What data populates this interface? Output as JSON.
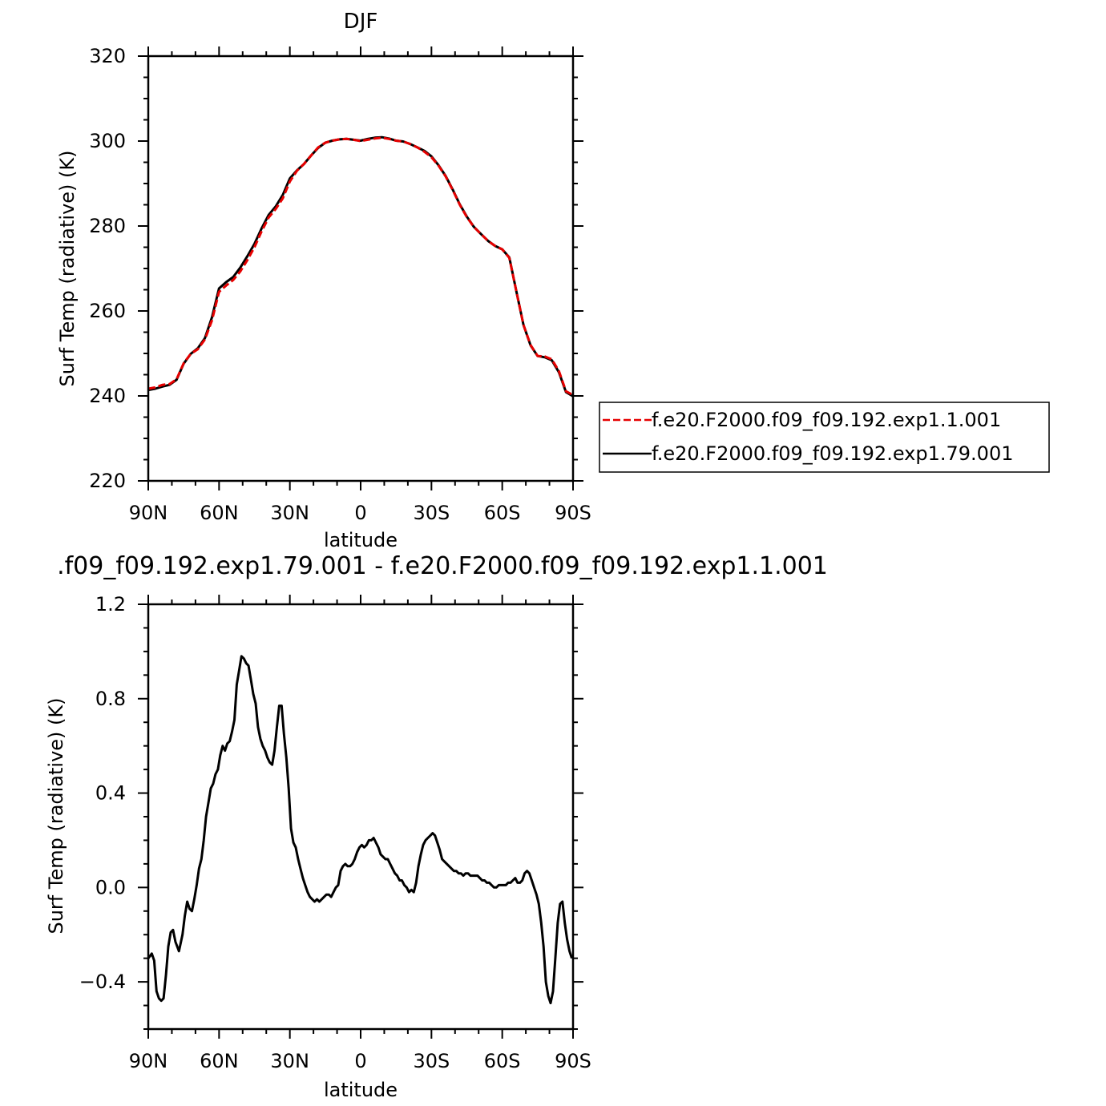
{
  "chart_data": [
    {
      "type": "line",
      "title": "DJF",
      "xlabel": "latitude",
      "ylabel": "Surf Temp (radiative) (K)",
      "xlim": [
        -90,
        90
      ],
      "ylim": [
        220,
        320
      ],
      "x_tick_values": [
        -90,
        -60,
        -30,
        0,
        30,
        60,
        90
      ],
      "x_tick_labels": [
        "90N",
        "60N",
        "30N",
        "0",
        "30S",
        "60S",
        "90S"
      ],
      "y_tick_values": [
        220,
        240,
        260,
        280,
        300,
        320
      ],
      "y_tick_labels": [
        "220",
        "240",
        "260",
        "280",
        "300",
        "320"
      ],
      "legend_position": "right",
      "series": [
        {
          "name": "f.e20.F2000.f09_f09.192.exp1.1.001",
          "color": "#e60000",
          "dash": "dashed",
          "x": [
            -90,
            -87,
            -84,
            -81,
            -78,
            -75,
            -72,
            -69,
            -66,
            -63,
            -60,
            -57,
            -54,
            -51,
            -48,
            -45,
            -42,
            -39,
            -36,
            -33,
            -30,
            -27,
            -24,
            -21,
            -18,
            -15,
            -12,
            -9,
            -6,
            -3,
            0,
            3,
            6,
            9,
            12,
            15,
            18,
            21,
            24,
            27,
            30,
            33,
            36,
            39,
            42,
            45,
            48,
            51,
            54,
            57,
            60,
            63,
            66,
            69,
            72,
            75,
            78,
            81,
            84,
            87,
            90
          ],
          "values": [
            241.7,
            242.0,
            242.6,
            242.8,
            243.9,
            247.7,
            249.9,
            251.0,
            253.3,
            257.8,
            264.5,
            266.0,
            267.3,
            269.3,
            272.0,
            275.0,
            278.7,
            282.0,
            284.0,
            286.5,
            290.5,
            293.0,
            294.6,
            296.6,
            298.5,
            299.6,
            300.1,
            300.4,
            300.5,
            300.3,
            300.0,
            300.3,
            300.6,
            300.8,
            300.5,
            300.1,
            299.9,
            299.3,
            298.5,
            297.5,
            296.2,
            294.2,
            291.7,
            288.5,
            285.0,
            282.1,
            279.8,
            278.1,
            276.5,
            275.3,
            274.5,
            272.5,
            264.6,
            256.7,
            252.0,
            249.4,
            249.3,
            248.6,
            245.9,
            241.1,
            240.2
          ]
        },
        {
          "name": "f.e20.F2000.f09_f09.192.exp1.79.001",
          "color": "#000000",
          "dash": "solid",
          "x": [
            -90,
            -87,
            -84,
            -81,
            -78,
            -75,
            -72,
            -69,
            -66,
            -63,
            -60,
            -57,
            -54,
            -51,
            -48,
            -45,
            -42,
            -39,
            -36,
            -33,
            -30,
            -27,
            -24,
            -21,
            -18,
            -15,
            -12,
            -9,
            -6,
            -3,
            0,
            3,
            6,
            9,
            12,
            15,
            18,
            21,
            24,
            27,
            30,
            33,
            36,
            39,
            42,
            45,
            48,
            51,
            54,
            57,
            60,
            63,
            66,
            69,
            72,
            75,
            78,
            81,
            84,
            87,
            90
          ],
          "values": [
            241.4,
            241.7,
            242.2,
            242.6,
            243.8,
            247.6,
            249.9,
            251.2,
            253.6,
            258.5,
            265.3,
            266.8,
            268.0,
            270.2,
            272.9,
            275.8,
            279.4,
            282.6,
            284.6,
            287.3,
            291.2,
            293.1,
            294.6,
            296.6,
            298.4,
            299.6,
            300.1,
            300.4,
            300.5,
            300.3,
            300.1,
            300.5,
            300.8,
            300.9,
            300.6,
            300.1,
            299.9,
            299.3,
            298.5,
            297.7,
            296.4,
            294.3,
            291.8,
            288.6,
            285.1,
            282.2,
            279.8,
            278.1,
            276.5,
            275.3,
            274.5,
            272.6,
            264.6,
            256.7,
            251.9,
            249.4,
            249.1,
            248.4,
            245.6,
            240.9,
            239.9
          ]
        }
      ]
    },
    {
      "type": "line",
      "title": ".f09_f09.192.exp1.79.001 - f.e20.F2000.f09_f09.192.exp1.1.001",
      "xlabel": "latitude",
      "ylabel": "Surf Temp (radiative) (K)",
      "xlim": [
        -90,
        90
      ],
      "ylim": [
        -0.6,
        1.2
      ],
      "x_tick_values": [
        -90,
        -60,
        -30,
        0,
        30,
        60,
        90
      ],
      "x_tick_labels": [
        "90N",
        "60N",
        "30N",
        "0",
        "30S",
        "60S",
        "90S"
      ],
      "y_tick_values": [
        -0.4,
        0.0,
        0.4,
        0.8,
        1.2
      ],
      "y_tick_labels": [
        "−0.4",
        "0.0",
        "0.4",
        "0.8",
        "1.2"
      ],
      "series": [
        {
          "color": "#000000",
          "x": [
            -90,
            -88.5,
            -87.5,
            -86.5,
            -85.5,
            -84.5,
            -83.5,
            -82.5,
            -81.5,
            -80.5,
            -79.5,
            -78.5,
            -77,
            -75.5,
            -74.5,
            -73.5,
            -72.5,
            -71.5,
            -70.5,
            -69.5,
            -68.5,
            -67.5,
            -66.5,
            -65.5,
            -64.5,
            -63.5,
            -62.5,
            -61.5,
            -60.5,
            -59.5,
            -58.5,
            -57.5,
            -56.5,
            -55.5,
            -54.5,
            -53.5,
            -52.5,
            -51.5,
            -50.5,
            -49.5,
            -48.5,
            -47.5,
            -46.5,
            -45.5,
            -44.5,
            -43.5,
            -42.5,
            -41.5,
            -40.5,
            -39.5,
            -38.5,
            -37.5,
            -36.5,
            -35.5,
            -34.5,
            -33.5,
            -32.5,
            -31.5,
            -30.5,
            -29.5,
            -28.5,
            -27.5,
            -26.5,
            -25.5,
            -24.5,
            -23.5,
            -22.5,
            -21.5,
            -20.5,
            -19.5,
            -18.5,
            -17.5,
            -16.5,
            -15.5,
            -14.5,
            -13.5,
            -12.5,
            -11.5,
            -10.5,
            -9.5,
            -8.5,
            -7.5,
            -6.5,
            -5.5,
            -4.5,
            -3.5,
            -2.5,
            -1.5,
            -0.5,
            0.5,
            1.5,
            2.5,
            3.5,
            4.5,
            5.5,
            6.5,
            7.5,
            8.5,
            9.5,
            10.5,
            11.5,
            12.5,
            13.5,
            14.5,
            15.5,
            16.5,
            17.5,
            18.5,
            19.5,
            20.5,
            21.5,
            22.5,
            23.5,
            24.5,
            25.5,
            26.5,
            27.5,
            28.5,
            29.5,
            30.5,
            31.5,
            32.5,
            33.5,
            34.5,
            35.5,
            36.5,
            37.5,
            38.5,
            39.5,
            40.5,
            41.5,
            42.5,
            43.5,
            44.5,
            45.5,
            46.5,
            47.5,
            48.5,
            49.5,
            50.5,
            51.5,
            52.5,
            53.5,
            54.5,
            55.5,
            56.5,
            57.5,
            58.5,
            59.5,
            60.5,
            61.5,
            62.5,
            63.5,
            64.5,
            65.5,
            66.5,
            67.5,
            68.5,
            69.5,
            70.5,
            71.5,
            72.5,
            73.5,
            74.5,
            75.5,
            76.5,
            77.5,
            78.5,
            79.5,
            80.5,
            81.5,
            82.5,
            83.5,
            84.5,
            85.5,
            86.5,
            87.5,
            88.5,
            89.5
          ],
          "values": [
            -0.3,
            -0.28,
            -0.31,
            -0.44,
            -0.47,
            -0.48,
            -0.47,
            -0.37,
            -0.25,
            -0.19,
            -0.18,
            -0.23,
            -0.27,
            -0.2,
            -0.12,
            -0.06,
            -0.09,
            -0.1,
            -0.05,
            0.01,
            0.08,
            0.12,
            0.2,
            0.3,
            0.36,
            0.42,
            0.44,
            0.48,
            0.5,
            0.56,
            0.6,
            0.58,
            0.61,
            0.62,
            0.66,
            0.71,
            0.86,
            0.92,
            0.98,
            0.97,
            0.95,
            0.94,
            0.88,
            0.82,
            0.78,
            0.68,
            0.63,
            0.6,
            0.58,
            0.55,
            0.53,
            0.52,
            0.58,
            0.68,
            0.77,
            0.77,
            0.65,
            0.55,
            0.42,
            0.25,
            0.19,
            0.17,
            0.12,
            0.08,
            0.04,
            0.01,
            -0.02,
            -0.04,
            -0.05,
            -0.06,
            -0.05,
            -0.06,
            -0.05,
            -0.04,
            -0.03,
            -0.03,
            -0.04,
            -0.02,
            0.0,
            0.01,
            0.07,
            0.09,
            0.1,
            0.09,
            0.09,
            0.1,
            0.12,
            0.15,
            0.17,
            0.18,
            0.17,
            0.18,
            0.2,
            0.2,
            0.21,
            0.19,
            0.17,
            0.14,
            0.13,
            0.12,
            0.12,
            0.1,
            0.08,
            0.06,
            0.05,
            0.03,
            0.03,
            0.01,
            0.0,
            -0.02,
            -0.01,
            -0.02,
            0.02,
            0.09,
            0.14,
            0.18,
            0.2,
            0.21,
            0.22,
            0.23,
            0.22,
            0.19,
            0.16,
            0.12,
            0.11,
            0.1,
            0.09,
            0.08,
            0.07,
            0.07,
            0.06,
            0.06,
            0.05,
            0.06,
            0.06,
            0.05,
            0.05,
            0.05,
            0.05,
            0.04,
            0.03,
            0.03,
            0.02,
            0.02,
            0.01,
            0.0,
            0.0,
            0.01,
            0.01,
            0.01,
            0.01,
            0.02,
            0.02,
            0.03,
            0.04,
            0.02,
            0.02,
            0.03,
            0.06,
            0.07,
            0.06,
            0.03,
            0.0,
            -0.03,
            -0.07,
            -0.15,
            -0.25,
            -0.4,
            -0.46,
            -0.49,
            -0.44,
            -0.3,
            -0.15,
            -0.07,
            -0.06,
            -0.15,
            -0.22,
            -0.27,
            -0.3
          ]
        }
      ]
    }
  ]
}
